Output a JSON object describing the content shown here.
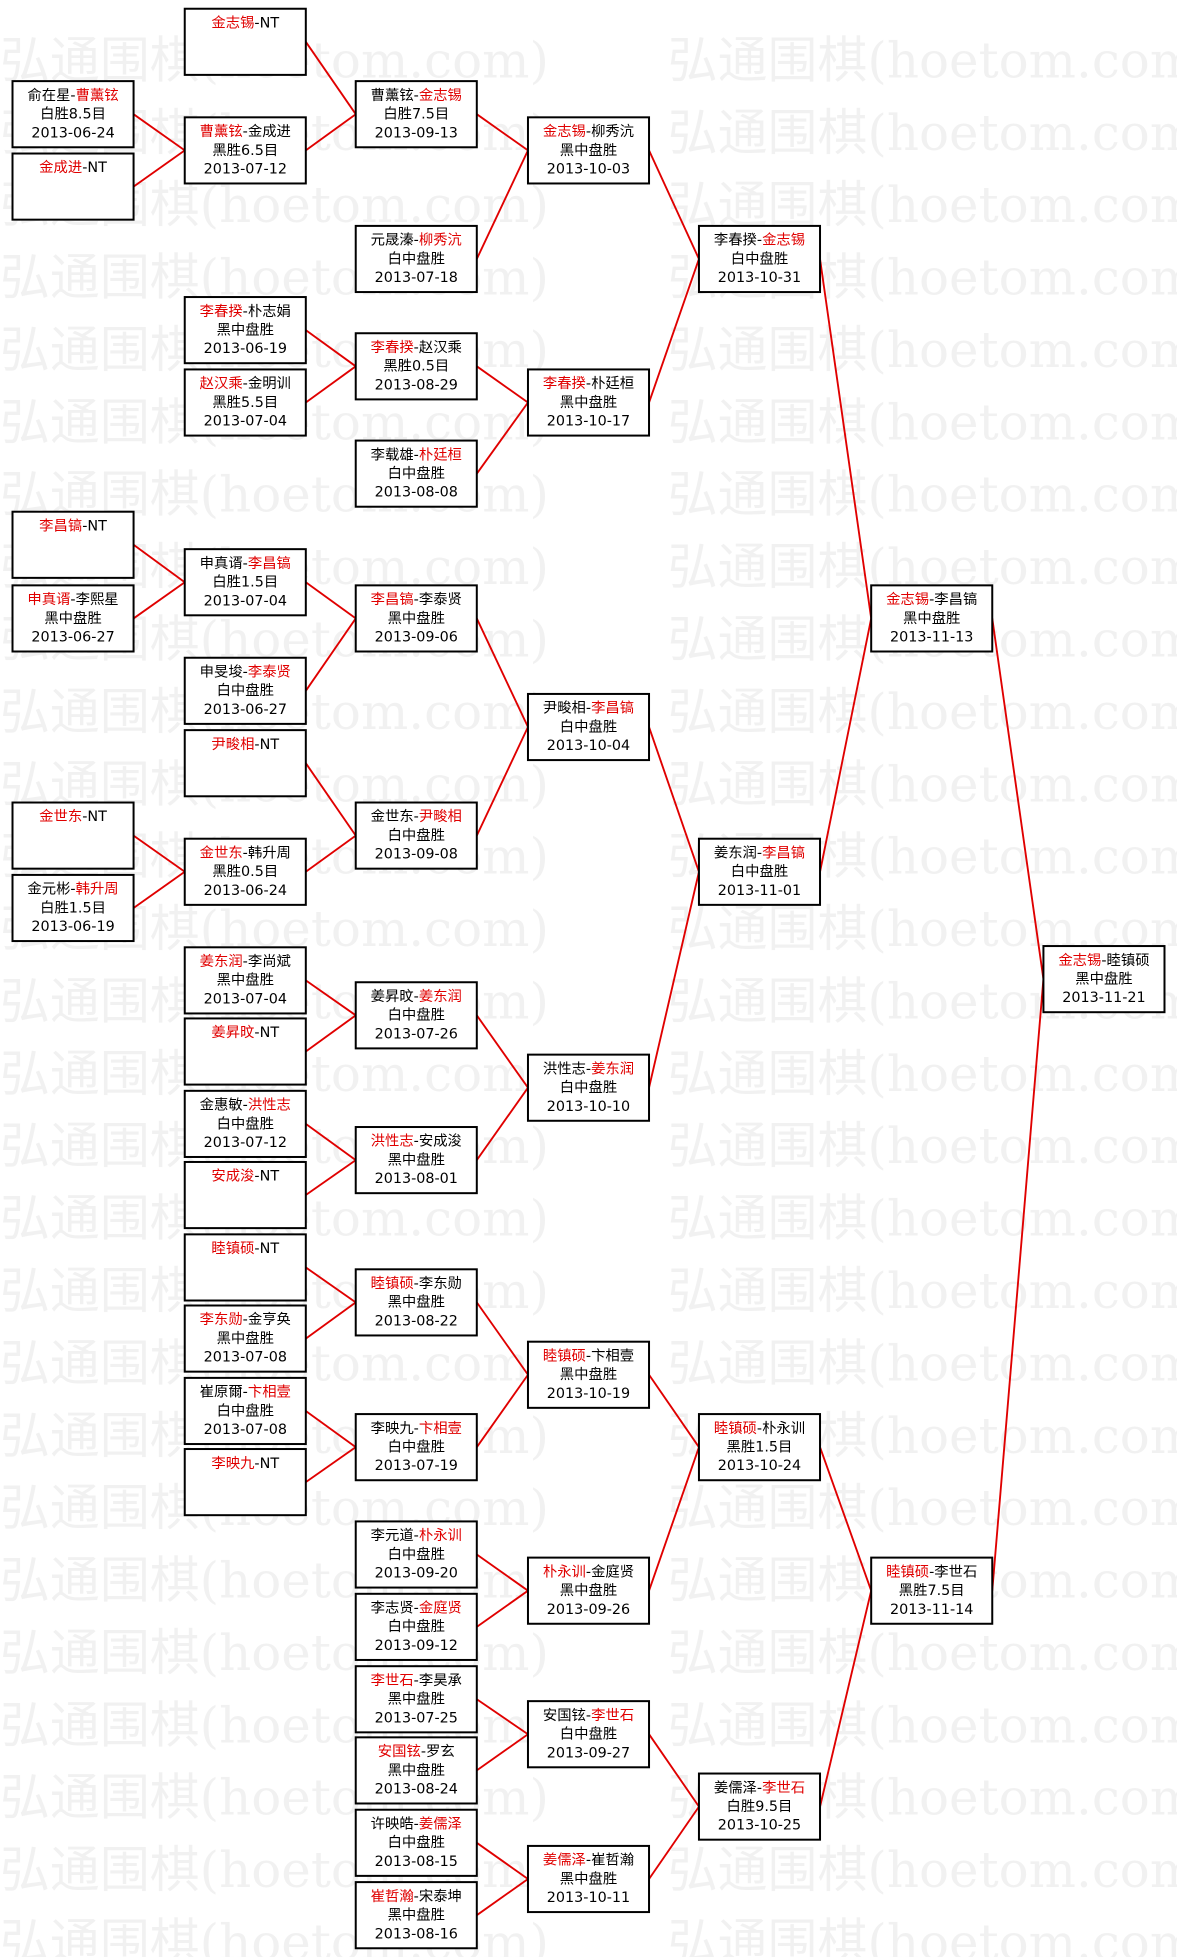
{
  "watermark": "弘通围棋(hoetom.com)",
  "separator": "-",
  "matches": [
    {
      "players": [
        "俞在星",
        "曹薰铉"
      ],
      "winner": 1,
      "result": "白胜8.5目",
      "date": "2013-06-24"
    },
    {
      "players": [
        "金成进",
        "NT"
      ],
      "winner": 0
    },
    {
      "players": [
        "李昌镐",
        "NT"
      ],
      "winner": 0
    },
    {
      "players": [
        "申真谞",
        "李熙星"
      ],
      "winner": 0,
      "result": "黑中盘胜",
      "date": "2013-06-27"
    },
    {
      "players": [
        "金世东",
        "NT"
      ],
      "winner": 0
    },
    {
      "players": [
        "金元彬",
        "韩升周"
      ],
      "winner": 1,
      "result": "白胜1.5目",
      "date": "2013-06-19"
    },
    {
      "players": [
        "金志锡",
        "NT"
      ],
      "winner": 0
    },
    {
      "players": [
        "曹薰铉",
        "金成进"
      ],
      "winner": 0,
      "result": "黑胜6.5目",
      "date": "2013-07-12"
    },
    {
      "players": [
        "李春揆",
        "朴志娟"
      ],
      "winner": 0,
      "result": "黑中盘胜",
      "date": "2013-06-19"
    },
    {
      "players": [
        "赵汉乘",
        "金明训"
      ],
      "winner": 0,
      "result": "黑胜5.5目",
      "date": "2013-07-04"
    },
    {
      "players": [
        "申真谞",
        "李昌镐"
      ],
      "winner": 1,
      "result": "白胜1.5目",
      "date": "2013-07-04"
    },
    {
      "players": [
        "申旻埈",
        "李泰贤"
      ],
      "winner": 1,
      "result": "白中盘胜",
      "date": "2013-06-27"
    },
    {
      "players": [
        "尹畯相",
        "NT"
      ],
      "winner": 0
    },
    {
      "players": [
        "金世东",
        "韩升周"
      ],
      "winner": 0,
      "result": "黑胜0.5目",
      "date": "2013-06-24"
    },
    {
      "players": [
        "姜东润",
        "李尚斌"
      ],
      "winner": 0,
      "result": "黑中盘胜",
      "date": "2013-07-04"
    },
    {
      "players": [
        "姜昇旼",
        "NT"
      ],
      "winner": 0
    },
    {
      "players": [
        "金惠敏",
        "洪性志"
      ],
      "winner": 1,
      "result": "白中盘胜",
      "date": "2013-07-12"
    },
    {
      "players": [
        "安成浚",
        "NT"
      ],
      "winner": 0
    },
    {
      "players": [
        "睦镇硕",
        "NT"
      ],
      "winner": 0
    },
    {
      "players": [
        "李东勋",
        "金亨奂"
      ],
      "winner": 0,
      "result": "黑中盘胜",
      "date": "2013-07-08"
    },
    {
      "players": [
        "崔原爾",
        "卞相壹"
      ],
      "winner": 1,
      "result": "白中盘胜",
      "date": "2013-07-08"
    },
    {
      "players": [
        "李映九",
        "NT"
      ],
      "winner": 0
    },
    {
      "players": [
        "曹薰铉",
        "金志锡"
      ],
      "winner": 1,
      "result": "白胜7.5目",
      "date": "2013-09-13"
    },
    {
      "players": [
        "元晟溱",
        "柳秀沆"
      ],
      "winner": 1,
      "result": "白中盘胜",
      "date": "2013-07-18"
    },
    {
      "players": [
        "李春揆",
        "赵汉乘"
      ],
      "winner": 0,
      "result": "黑胜0.5目",
      "date": "2013-08-29"
    },
    {
      "players": [
        "李载雄",
        "朴廷桓"
      ],
      "winner": 1,
      "result": "白中盘胜",
      "date": "2013-08-08"
    },
    {
      "players": [
        "李昌镐",
        "李泰贤"
      ],
      "winner": 0,
      "result": "黑中盘胜",
      "date": "2013-09-06"
    },
    {
      "players": [
        "金世东",
        "尹畯相"
      ],
      "winner": 1,
      "result": "白中盘胜",
      "date": "2013-09-08"
    },
    {
      "players": [
        "姜昇旼",
        "姜东润"
      ],
      "winner": 1,
      "result": "白中盘胜",
      "date": "2013-07-26"
    },
    {
      "players": [
        "洪性志",
        "安成浚"
      ],
      "winner": 0,
      "result": "黑中盘胜",
      "date": "2013-08-01"
    },
    {
      "players": [
        "睦镇硕",
        "李东勋"
      ],
      "winner": 0,
      "result": "黑中盘胜",
      "date": "2013-08-22"
    },
    {
      "players": [
        "李映九",
        "卞相壹"
      ],
      "winner": 1,
      "result": "白中盘胜",
      "date": "2013-07-19"
    },
    {
      "players": [
        "李元道",
        "朴永训"
      ],
      "winner": 1,
      "result": "白中盘胜",
      "date": "2013-09-20"
    },
    {
      "players": [
        "李志贤",
        "金庭贤"
      ],
      "winner": 1,
      "result": "白中盘胜",
      "date": "2013-09-12"
    },
    {
      "players": [
        "李世石",
        "李昊承"
      ],
      "winner": 0,
      "result": "黑中盘胜",
      "date": "2013-07-25"
    },
    {
      "players": [
        "安国铉",
        "罗玄"
      ],
      "winner": 0,
      "result": "黑中盘胜",
      "date": "2013-08-24"
    },
    {
      "players": [
        "许映皓",
        "姜儒泽"
      ],
      "winner": 1,
      "result": "白中盘胜",
      "date": "2013-08-15"
    },
    {
      "players": [
        "崔哲瀚",
        "宋泰坤"
      ],
      "winner": 0,
      "result": "黑中盘胜",
      "date": "2013-08-16"
    },
    {
      "players": [
        "金志锡",
        "柳秀沆"
      ],
      "winner": 0,
      "result": "黑中盘胜",
      "date": "2013-10-03"
    },
    {
      "players": [
        "李春揆",
        "朴廷桓"
      ],
      "winner": 0,
      "result": "黑中盘胜",
      "date": "2013-10-17"
    },
    {
      "players": [
        "尹畯相",
        "李昌镐"
      ],
      "winner": 1,
      "result": "白中盘胜",
      "date": "2013-10-04"
    },
    {
      "players": [
        "洪性志",
        "姜东润"
      ],
      "winner": 1,
      "result": "白中盘胜",
      "date": "2013-10-10"
    },
    {
      "players": [
        "睦镇硕",
        "卞相壹"
      ],
      "winner": 0,
      "result": "黑中盘胜",
      "date": "2013-10-19"
    },
    {
      "players": [
        "朴永训",
        "金庭贤"
      ],
      "winner": 0,
      "result": "黑中盘胜",
      "date": "2013-09-26"
    },
    {
      "players": [
        "安国铉",
        "李世石"
      ],
      "winner": 1,
      "result": "白中盘胜",
      "date": "2013-09-27"
    },
    {
      "players": [
        "姜儒泽",
        "崔哲瀚"
      ],
      "winner": 0,
      "result": "黑中盘胜",
      "date": "2013-10-11"
    },
    {
      "players": [
        "李春揆",
        "金志锡"
      ],
      "winner": 1,
      "result": "白中盘胜",
      "date": "2013-10-31"
    },
    {
      "players": [
        "姜东润",
        "李昌镐"
      ],
      "winner": 1,
      "result": "白中盘胜",
      "date": "2013-11-01"
    },
    {
      "players": [
        "睦镇硕",
        "朴永训"
      ],
      "winner": 0,
      "result": "黑胜1.5目",
      "date": "2013-10-24"
    },
    {
      "players": [
        "姜儒泽",
        "李世石"
      ],
      "winner": 1,
      "result": "白胜9.5目",
      "date": "2013-10-25"
    },
    {
      "players": [
        "金志锡",
        "李昌镐"
      ],
      "winner": 0,
      "result": "黑中盘胜",
      "date": "2013-11-13"
    },
    {
      "players": [
        "睦镇硕",
        "李世石"
      ],
      "winner": 0,
      "result": "黑胜7.5目",
      "date": "2013-11-14"
    },
    {
      "players": [
        "金志锡",
        "睦镇硕"
      ],
      "winner": 0,
      "result": "黑中盘胜",
      "date": "2013-11-21"
    }
  ]
}
